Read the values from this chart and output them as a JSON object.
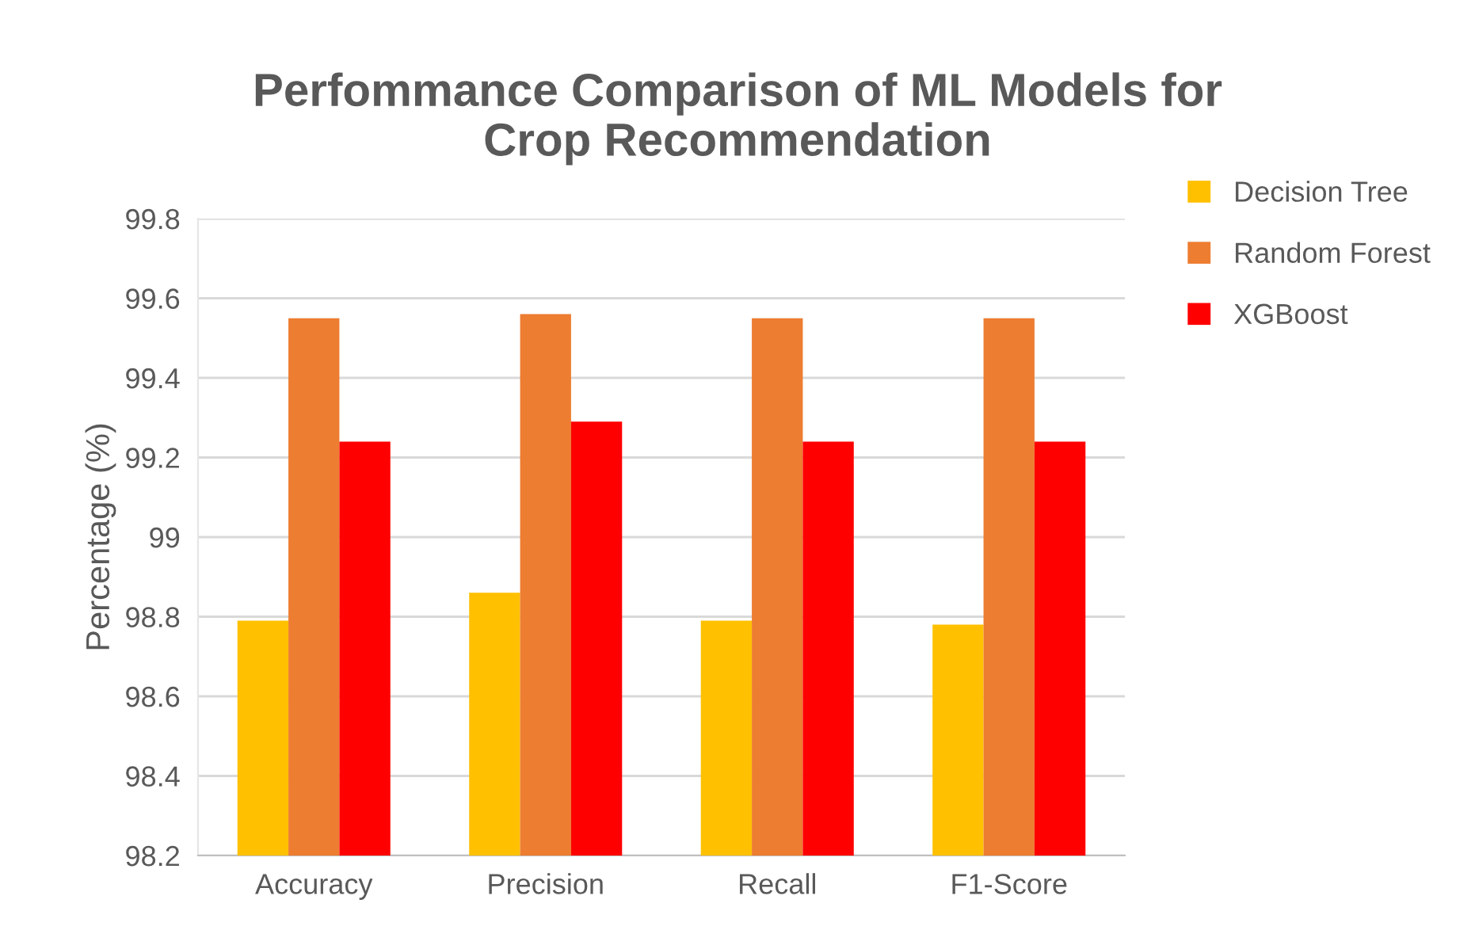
{
  "chart_data": {
    "type": "bar",
    "title": "Perfommance Comparison of ML Models for\nCrop Recommendation",
    "ylabel": "Percentage (%)",
    "categories": [
      "Accuracy",
      "Precision",
      "Recall",
      "F1-Score"
    ],
    "series": [
      {
        "name": "Decision Tree",
        "color": "#ffc000",
        "values": [
          98.79,
          98.86,
          98.79,
          98.78
        ]
      },
      {
        "name": "Random Forest",
        "color": "#ed7d31",
        "values": [
          99.55,
          99.56,
          99.55,
          99.55
        ]
      },
      {
        "name": "XGBoost",
        "color": "#ff0000",
        "values": [
          99.24,
          99.29,
          99.24,
          99.24
        ]
      }
    ],
    "ylim": [
      98.2,
      99.8
    ],
    "yticks": [
      98.2,
      98.4,
      98.6,
      98.8,
      99,
      99.2,
      99.4,
      99.6,
      99.8
    ],
    "grid": "y",
    "legend": "right"
  }
}
